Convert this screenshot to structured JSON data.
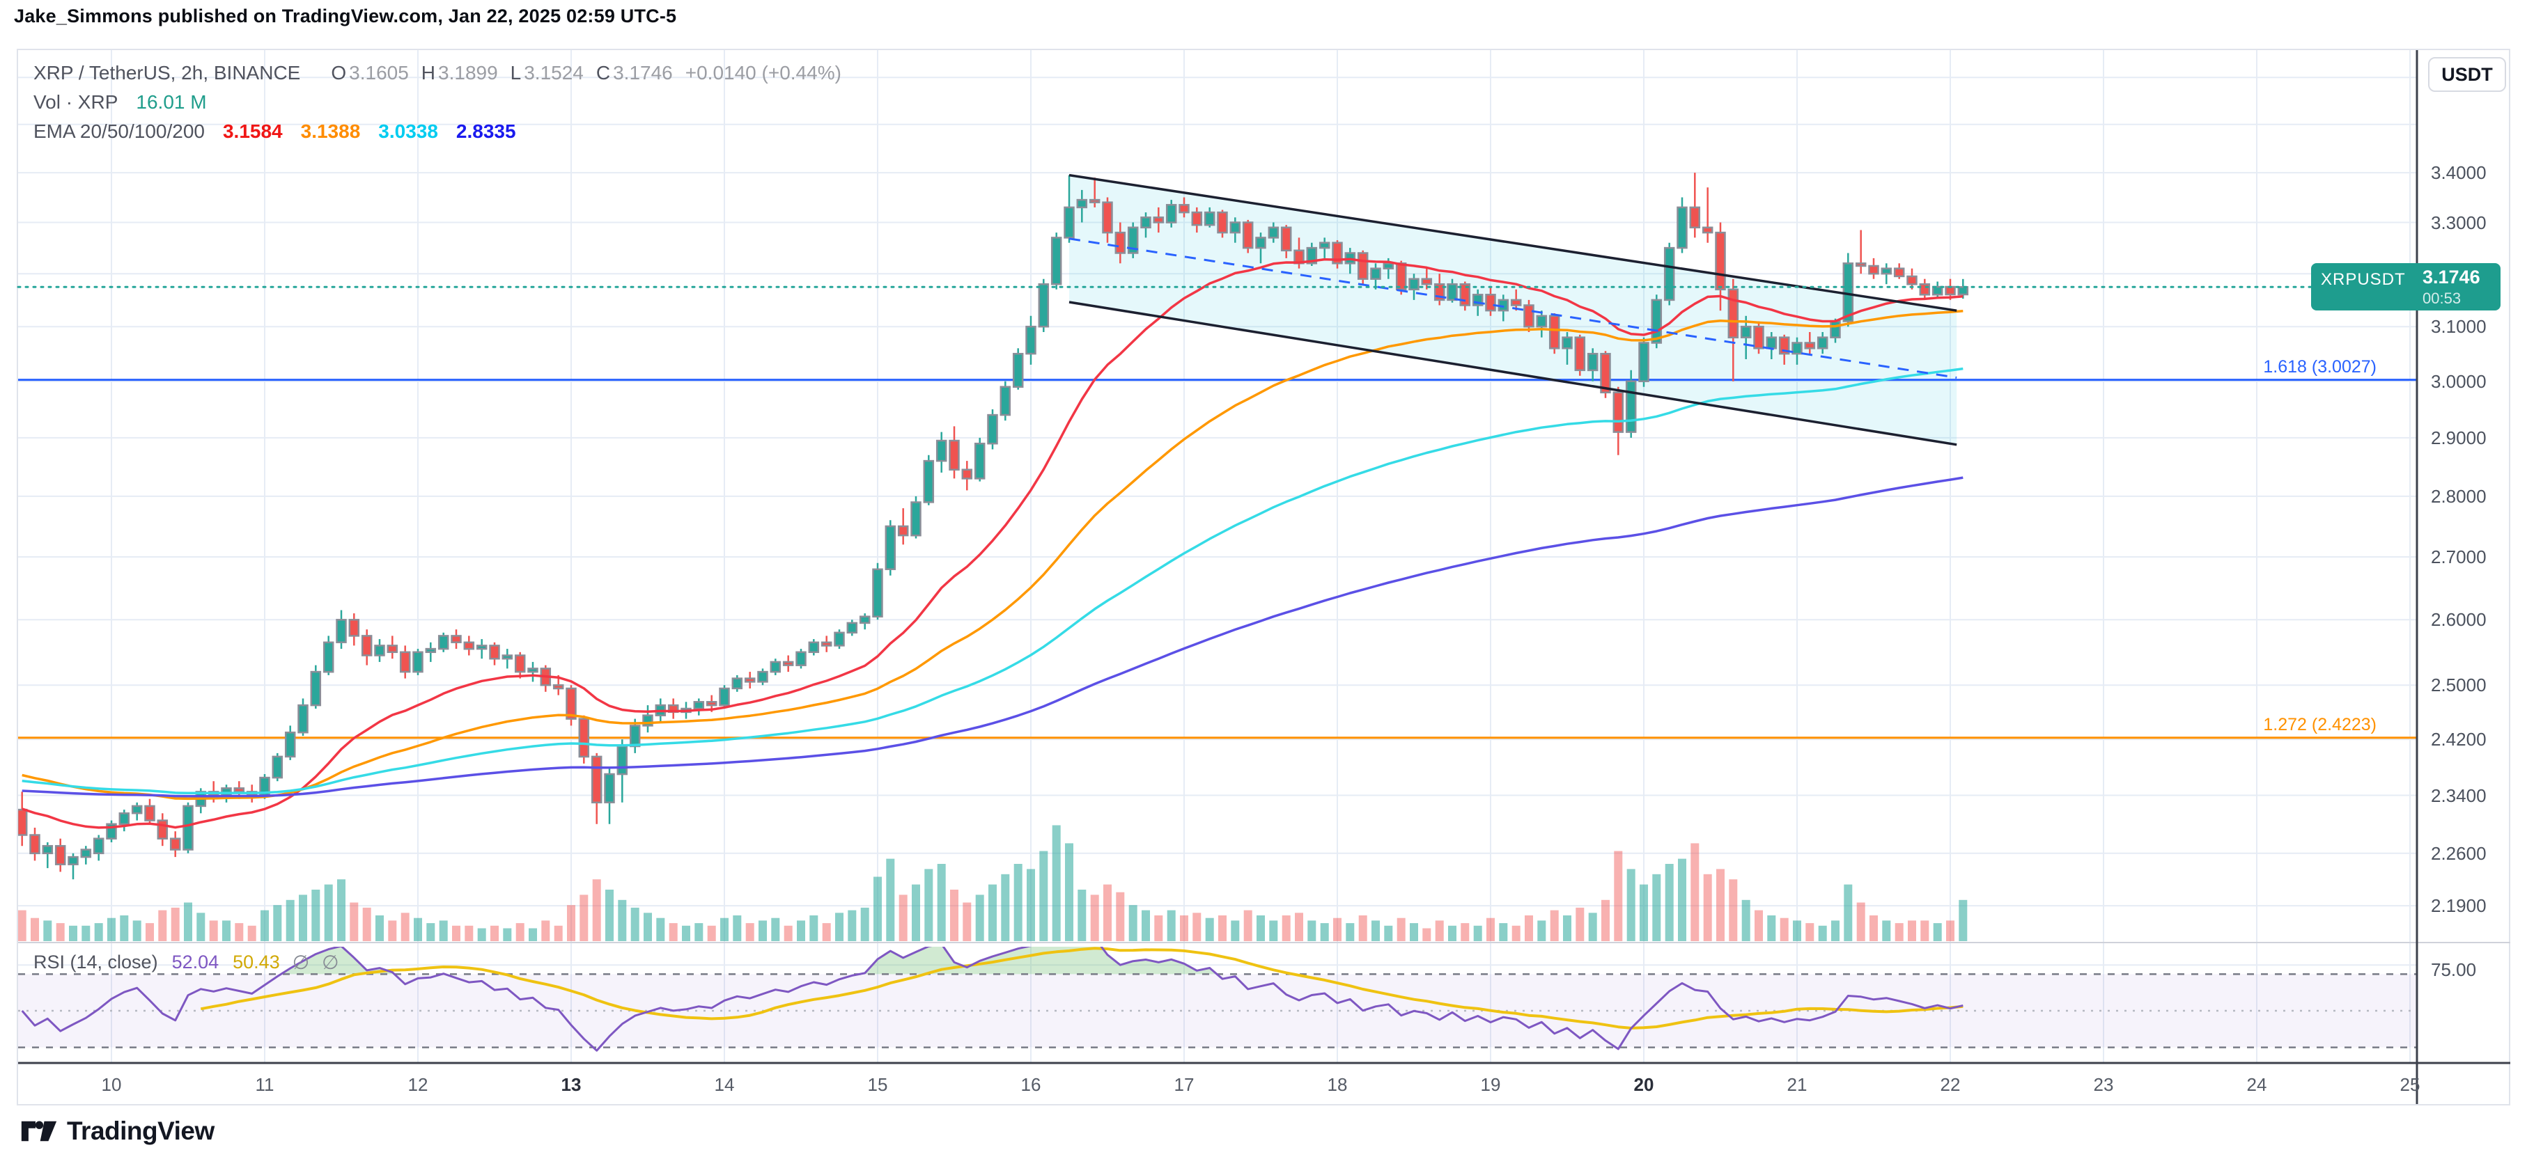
{
  "attribution": "Jake_Simmons published on TradingView.com, Jan 22, 2025 02:59 UTC-5",
  "footer": {
    "brand": "TradingView"
  },
  "legend": {
    "symbol": "XRP / TetherUS, 2h, BINANCE",
    "ohlc": {
      "o_label": "O",
      "o": "3.1605",
      "h_label": "H",
      "h": "3.1899",
      "l_label": "L",
      "l": "3.1524",
      "c_label": "C",
      "c": "3.1746"
    },
    "change": "+0.0140 (+0.44%)",
    "vol_label": "Vol · XRP",
    "vol_value": "16.01 M",
    "ema_label": "EMA 20/50/100/200"
  },
  "rsi_legend": {
    "label": "RSI (14, close)",
    "value": "52.04",
    "ma_value": "50.43",
    "empty1": "∅",
    "empty2": "∅"
  },
  "price_axis": {
    "currency_button": "USDT",
    "ticks": [
      {
        "price": 3.6,
        "label": ""
      },
      {
        "price": 3.5,
        "label": ""
      },
      {
        "price": 3.4,
        "label": "3.4000"
      },
      {
        "price": 3.3,
        "label": "3.3000"
      },
      {
        "price": 3.2,
        "label": "3.2000"
      },
      {
        "price": 3.1,
        "label": "3.1000"
      },
      {
        "price": 3.0,
        "label": "3.0000"
      },
      {
        "price": 2.9,
        "label": "2.9000"
      },
      {
        "price": 2.8,
        "label": "2.8000"
      },
      {
        "price": 2.7,
        "label": "2.7000"
      },
      {
        "price": 2.6,
        "label": "2.6000"
      },
      {
        "price": 2.5,
        "label": "2.5000"
      },
      {
        "price": 2.42,
        "label": "2.4200"
      },
      {
        "price": 2.34,
        "label": "2.3400"
      },
      {
        "price": 2.26,
        "label": "2.2600"
      },
      {
        "price": 2.19,
        "label": "2.1900"
      }
    ],
    "rsi_tick": {
      "value": 75,
      "label": "75.00"
    }
  },
  "time_axis": {
    "labels": [
      {
        "text": "10",
        "bold": false
      },
      {
        "text": "11",
        "bold": false
      },
      {
        "text": "12",
        "bold": false
      },
      {
        "text": "13",
        "bold": true
      },
      {
        "text": "14",
        "bold": false
      },
      {
        "text": "15",
        "bold": false
      },
      {
        "text": "16",
        "bold": false
      },
      {
        "text": "17",
        "bold": false
      },
      {
        "text": "18",
        "bold": false
      },
      {
        "text": "19",
        "bold": false
      },
      {
        "text": "20",
        "bold": true
      },
      {
        "text": "21",
        "bold": false
      },
      {
        "text": "22",
        "bold": false
      },
      {
        "text": "23",
        "bold": false
      },
      {
        "text": "24",
        "bold": false
      },
      {
        "text": "25",
        "bold": false
      }
    ]
  },
  "last_price_badge": {
    "symbol": "XRPUSDT",
    "price": "3.1746",
    "countdown": "00:53",
    "color": "#1e9d8e"
  },
  "chart_data": {
    "type": "candlestick",
    "title": "XRP / TetherUS 2h BINANCE",
    "symbol": "XRPUSDT",
    "timeframe": "2h",
    "start": "2025-01-09 10:00",
    "interval_hours": 2,
    "current_price": 3.1746,
    "volume_unit": "M",
    "grid": true,
    "colors": {
      "up": "#2aa79b",
      "down": "#f05350",
      "candle_border": "#8b8e98",
      "vol_up": "rgba(42,167,155,0.55)",
      "vol_down": "rgba(240,83,80,0.45)",
      "grid": "#e6ecf5",
      "separator": "#cfd2da",
      "axis_line": "#3c404b",
      "current_price_line": "#26a69a",
      "rsi_line": "#7e57c2",
      "rsi_ma_line": "#efc211",
      "rsi_band": "#787b86",
      "rsi_mid": "#b5b8c1",
      "rsi_fill": "rgba(126,87,194,0.07)",
      "rsi_over_fill": "rgba(102,187,106,0.30)"
    },
    "emas": [
      {
        "period": 20,
        "seed": 2.325,
        "line_color": "#f23645",
        "legend_color": "#f01716",
        "value": "3.1584"
      },
      {
        "period": 50,
        "seed": 2.372,
        "line_color": "#ff9800",
        "legend_color": "#ff8c00",
        "value": "3.1388"
      },
      {
        "period": 100,
        "seed": 2.362,
        "line_color": "#35dbe6",
        "legend_color": "#00ccf0",
        "value": "3.0338"
      },
      {
        "period": 200,
        "seed": 2.347,
        "line_color": "#5b50e6",
        "legend_color": "#1a1aee",
        "value": "2.8335"
      }
    ],
    "rsi": {
      "period": 14,
      "ma_period": 14,
      "upper": 70,
      "lower": 30,
      "middle": 50,
      "value": 52.04,
      "ma_value": 50.43
    },
    "levels": [
      {
        "label": "1.618 (3.0027)",
        "price": 3.0027,
        "color": "#2962ff"
      },
      {
        "label": "1.272 (2.4223)",
        "price": 2.4223,
        "color": "#ff9100"
      }
    ],
    "channel": {
      "start_index": 82,
      "end_index": 151.5,
      "top_start": 3.395,
      "top_end": 3.13,
      "bottom_start": 3.146,
      "bottom_end": 2.888,
      "line_color": "#1c2030",
      "mid_color": "#2962ff",
      "fill": "rgba(0,188,212,0.10)"
    },
    "candles": [
      [
        2.32,
        2.345,
        2.27,
        2.285,
        12
      ],
      [
        2.285,
        2.295,
        2.25,
        2.26,
        9
      ],
      [
        2.26,
        2.275,
        2.24,
        2.27,
        8
      ],
      [
        2.27,
        2.28,
        2.235,
        2.245,
        7
      ],
      [
        2.245,
        2.26,
        2.225,
        2.255,
        6
      ],
      [
        2.255,
        2.27,
        2.245,
        2.265,
        6
      ],
      [
        2.26,
        2.285,
        2.25,
        2.28,
        7
      ],
      [
        2.28,
        2.305,
        2.275,
        2.3,
        9
      ],
      [
        2.3,
        2.32,
        2.29,
        2.315,
        10
      ],
      [
        2.315,
        2.33,
        2.305,
        2.325,
        8
      ],
      [
        2.325,
        2.335,
        2.3,
        2.305,
        7
      ],
      [
        2.305,
        2.315,
        2.27,
        2.28,
        12
      ],
      [
        2.28,
        2.29,
        2.255,
        2.265,
        13
      ],
      [
        2.265,
        2.33,
        2.26,
        2.325,
        15
      ],
      [
        2.325,
        2.35,
        2.315,
        2.345,
        11
      ],
      [
        2.345,
        2.36,
        2.33,
        2.34,
        8
      ],
      [
        2.34,
        2.355,
        2.33,
        2.35,
        8
      ],
      [
        2.35,
        2.36,
        2.335,
        2.345,
        7
      ],
      [
        2.345,
        2.355,
        2.33,
        2.34,
        6
      ],
      [
        2.34,
        2.37,
        2.335,
        2.365,
        12
      ],
      [
        2.365,
        2.4,
        2.36,
        2.395,
        14
      ],
      [
        2.395,
        2.44,
        2.39,
        2.43,
        16
      ],
      [
        2.43,
        2.48,
        2.425,
        2.47,
        18
      ],
      [
        2.47,
        2.53,
        2.465,
        2.52,
        20
      ],
      [
        2.52,
        2.575,
        2.515,
        2.565,
        22
      ],
      [
        2.565,
        2.615,
        2.555,
        2.6,
        24
      ],
      [
        2.6,
        2.61,
        2.56,
        2.575,
        15
      ],
      [
        2.575,
        2.585,
        2.53,
        2.545,
        13
      ],
      [
        2.545,
        2.57,
        2.535,
        2.56,
        10
      ],
      [
        2.56,
        2.575,
        2.54,
        2.55,
        8
      ],
      [
        2.55,
        2.56,
        2.51,
        2.52,
        11
      ],
      [
        2.52,
        2.555,
        2.515,
        2.55,
        9
      ],
      [
        2.55,
        2.565,
        2.535,
        2.555,
        7
      ],
      [
        2.555,
        2.58,
        2.55,
        2.575,
        8
      ],
      [
        2.575,
        2.585,
        2.555,
        2.565,
        6
      ],
      [
        2.565,
        2.575,
        2.545,
        2.555,
        6
      ],
      [
        2.555,
        2.57,
        2.54,
        2.56,
        5
      ],
      [
        2.56,
        2.565,
        2.53,
        2.54,
        6
      ],
      [
        2.54,
        2.555,
        2.525,
        2.545,
        5
      ],
      [
        2.545,
        2.55,
        2.51,
        2.52,
        7
      ],
      [
        2.52,
        2.535,
        2.505,
        2.525,
        5
      ],
      [
        2.525,
        2.53,
        2.49,
        2.5,
        8
      ],
      [
        2.5,
        2.515,
        2.485,
        2.495,
        6
      ],
      [
        2.495,
        2.5,
        2.44,
        2.45,
        14
      ],
      [
        2.45,
        2.455,
        2.385,
        2.395,
        18
      ],
      [
        2.395,
        2.4,
        2.3,
        2.33,
        24
      ],
      [
        2.33,
        2.38,
        2.3,
        2.37,
        20
      ],
      [
        2.37,
        2.42,
        2.33,
        2.41,
        16
      ],
      [
        2.41,
        2.45,
        2.4,
        2.44,
        13
      ],
      [
        2.44,
        2.47,
        2.43,
        2.455,
        11
      ],
      [
        2.455,
        2.48,
        2.445,
        2.47,
        9
      ],
      [
        2.47,
        2.48,
        2.45,
        2.46,
        7
      ],
      [
        2.46,
        2.475,
        2.45,
        2.465,
        6
      ],
      [
        2.465,
        2.48,
        2.455,
        2.475,
        7
      ],
      [
        2.475,
        2.485,
        2.46,
        2.47,
        6
      ],
      [
        2.47,
        2.5,
        2.465,
        2.495,
        9
      ],
      [
        2.495,
        2.515,
        2.49,
        2.51,
        10
      ],
      [
        2.51,
        2.52,
        2.495,
        2.505,
        7
      ],
      [
        2.505,
        2.525,
        2.5,
        2.52,
        8
      ],
      [
        2.52,
        2.54,
        2.515,
        2.535,
        9
      ],
      [
        2.535,
        2.545,
        2.52,
        2.53,
        6
      ],
      [
        2.53,
        2.555,
        2.525,
        2.55,
        8
      ],
      [
        2.55,
        2.57,
        2.545,
        2.565,
        10
      ],
      [
        2.565,
        2.575,
        2.55,
        2.56,
        7
      ],
      [
        2.56,
        2.585,
        2.555,
        2.58,
        11
      ],
      [
        2.58,
        2.6,
        2.575,
        2.595,
        12
      ],
      [
        2.595,
        2.61,
        2.585,
        2.605,
        13
      ],
      [
        2.605,
        2.69,
        2.6,
        2.68,
        25
      ],
      [
        2.68,
        2.76,
        2.67,
        2.75,
        32
      ],
      [
        2.75,
        2.78,
        2.72,
        2.735,
        18
      ],
      [
        2.735,
        2.8,
        2.73,
        2.79,
        22
      ],
      [
        2.79,
        2.87,
        2.785,
        2.86,
        28
      ],
      [
        2.86,
        2.91,
        2.84,
        2.895,
        30
      ],
      [
        2.895,
        2.92,
        2.83,
        2.845,
        20
      ],
      [
        2.845,
        2.86,
        2.81,
        2.83,
        15
      ],
      [
        2.83,
        2.9,
        2.825,
        2.89,
        18
      ],
      [
        2.89,
        2.95,
        2.88,
        2.94,
        22
      ],
      [
        2.94,
        3.0,
        2.93,
        2.99,
        26
      ],
      [
        2.99,
        3.06,
        2.985,
        3.05,
        30
      ],
      [
        3.05,
        3.12,
        3.03,
        3.1,
        28
      ],
      [
        3.1,
        3.19,
        3.09,
        3.18,
        35
      ],
      [
        3.18,
        3.28,
        3.17,
        3.27,
        45
      ],
      [
        3.27,
        3.395,
        3.26,
        3.33,
        38
      ],
      [
        3.33,
        3.365,
        3.3,
        3.345,
        20
      ],
      [
        3.345,
        3.39,
        3.33,
        3.34,
        18
      ],
      [
        3.34,
        3.35,
        3.26,
        3.28,
        22
      ],
      [
        3.28,
        3.3,
        3.22,
        3.24,
        19
      ],
      [
        3.24,
        3.3,
        3.23,
        3.29,
        14
      ],
      [
        3.29,
        3.32,
        3.27,
        3.31,
        12
      ],
      [
        3.31,
        3.33,
        3.28,
        3.3,
        10
      ],
      [
        3.3,
        3.345,
        3.29,
        3.335,
        12
      ],
      [
        3.335,
        3.35,
        3.31,
        3.32,
        10
      ],
      [
        3.32,
        3.33,
        3.28,
        3.295,
        11
      ],
      [
        3.295,
        3.33,
        3.29,
        3.32,
        9
      ],
      [
        3.32,
        3.325,
        3.27,
        3.28,
        10
      ],
      [
        3.28,
        3.31,
        3.26,
        3.3,
        8
      ],
      [
        3.3,
        3.305,
        3.24,
        3.25,
        12
      ],
      [
        3.25,
        3.28,
        3.22,
        3.27,
        10
      ],
      [
        3.27,
        3.3,
        3.26,
        3.29,
        8
      ],
      [
        3.29,
        3.295,
        3.23,
        3.245,
        10
      ],
      [
        3.245,
        3.27,
        3.21,
        3.22,
        11
      ],
      [
        3.22,
        3.26,
        3.215,
        3.25,
        8
      ],
      [
        3.25,
        3.27,
        3.23,
        3.26,
        7
      ],
      [
        3.26,
        3.265,
        3.21,
        3.22,
        9
      ],
      [
        3.22,
        3.25,
        3.2,
        3.24,
        7
      ],
      [
        3.24,
        3.245,
        3.18,
        3.19,
        10
      ],
      [
        3.19,
        3.22,
        3.17,
        3.21,
        8
      ],
      [
        3.21,
        3.23,
        3.19,
        3.22,
        6
      ],
      [
        3.22,
        3.225,
        3.16,
        3.17,
        9
      ],
      [
        3.17,
        3.2,
        3.15,
        3.19,
        7
      ],
      [
        3.19,
        3.21,
        3.17,
        3.18,
        5
      ],
      [
        3.18,
        3.2,
        3.14,
        3.15,
        8
      ],
      [
        3.15,
        3.19,
        3.145,
        3.18,
        6
      ],
      [
        3.18,
        3.185,
        3.13,
        3.14,
        7
      ],
      [
        3.14,
        3.17,
        3.12,
        3.16,
        6
      ],
      [
        3.16,
        3.175,
        3.12,
        3.13,
        9
      ],
      [
        3.13,
        3.16,
        3.11,
        3.15,
        7
      ],
      [
        3.15,
        3.17,
        3.13,
        3.14,
        6
      ],
      [
        3.14,
        3.15,
        3.09,
        3.1,
        10
      ],
      [
        3.1,
        3.13,
        3.08,
        3.12,
        8
      ],
      [
        3.12,
        3.125,
        3.05,
        3.06,
        12
      ],
      [
        3.06,
        3.09,
        3.03,
        3.08,
        10
      ],
      [
        3.08,
        3.085,
        3.01,
        3.02,
        13
      ],
      [
        3.02,
        3.06,
        3.0,
        3.05,
        11
      ],
      [
        3.05,
        3.055,
        2.97,
        2.98,
        16
      ],
      [
        2.98,
        2.99,
        2.87,
        2.91,
        35
      ],
      [
        2.91,
        3.02,
        2.9,
        3.0,
        28
      ],
      [
        3.0,
        3.08,
        2.99,
        3.07,
        22
      ],
      [
        3.07,
        3.16,
        3.06,
        3.15,
        26
      ],
      [
        3.15,
        3.26,
        3.14,
        3.25,
        30
      ],
      [
        3.25,
        3.35,
        3.24,
        3.33,
        32
      ],
      [
        3.33,
        3.4,
        3.27,
        3.29,
        38
      ],
      [
        3.29,
        3.37,
        3.26,
        3.28,
        26
      ],
      [
        3.28,
        3.3,
        3.13,
        3.17,
        28
      ],
      [
        3.17,
        3.19,
        3.0,
        3.08,
        24
      ],
      [
        3.08,
        3.12,
        3.04,
        3.1,
        16
      ],
      [
        3.1,
        3.11,
        3.05,
        3.06,
        12
      ],
      [
        3.06,
        3.09,
        3.04,
        3.08,
        10
      ],
      [
        3.08,
        3.085,
        3.03,
        3.05,
        9
      ],
      [
        3.05,
        3.08,
        3.03,
        3.07,
        8
      ],
      [
        3.07,
        3.09,
        3.05,
        3.06,
        7
      ],
      [
        3.06,
        3.09,
        3.05,
        3.08,
        6
      ],
      [
        3.08,
        3.115,
        3.07,
        3.11,
        8
      ],
      [
        3.11,
        3.24,
        3.1,
        3.22,
        22
      ],
      [
        3.22,
        3.285,
        3.2,
        3.215,
        15
      ],
      [
        3.215,
        3.23,
        3.19,
        3.2,
        10
      ],
      [
        3.2,
        3.22,
        3.18,
        3.21,
        8
      ],
      [
        3.21,
        3.22,
        3.19,
        3.195,
        7
      ],
      [
        3.195,
        3.21,
        3.17,
        3.18,
        8
      ],
      [
        3.18,
        3.19,
        3.15,
        3.16,
        8
      ],
      [
        3.16,
        3.185,
        3.155,
        3.175,
        7
      ],
      [
        3.175,
        3.19,
        3.15,
        3.1605,
        8
      ],
      [
        3.1605,
        3.1899,
        3.1524,
        3.1746,
        16.01
      ]
    ]
  }
}
